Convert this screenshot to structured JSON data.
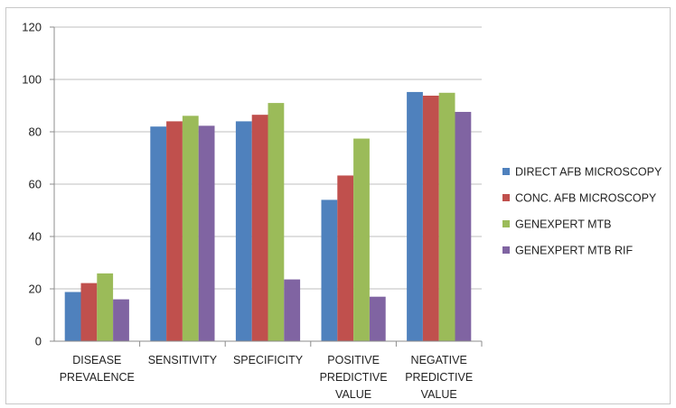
{
  "chart_data": {
    "type": "bar",
    "title": "",
    "xlabel": "",
    "ylabel": "",
    "ylim": [
      0,
      120
    ],
    "yticks": [
      0,
      20,
      40,
      60,
      80,
      100,
      120
    ],
    "grid": true,
    "legend_position": "right",
    "categories": [
      [
        "DISEASE",
        "PREVALENCE"
      ],
      [
        "SENSITIVITY"
      ],
      [
        "SPECIFICITY"
      ],
      [
        "POSITIVE",
        "PREDICTIVE",
        "VALUE"
      ],
      [
        "NEGATIVE",
        "PREDICTIVE",
        "VALUE"
      ]
    ],
    "series": [
      {
        "name": "DIRECT AFB MICROSCOPY",
        "color": "#4f81bd",
        "values": [
          18.8,
          82,
          84,
          54,
          95.2
        ]
      },
      {
        "name": "CONC. AFB MICROSCOPY",
        "color": "#c0504d",
        "values": [
          22.2,
          84,
          86.5,
          63.3,
          93.8
        ]
      },
      {
        "name": "GENEXPERT MTB",
        "color": "#9bbb59",
        "values": [
          25.9,
          86.1,
          91,
          77.4,
          94.9
        ]
      },
      {
        "name": "GENEXPERT MTB RIF",
        "color": "#8064a2",
        "values": [
          16,
          82.3,
          23.6,
          17,
          87.6
        ]
      }
    ]
  }
}
